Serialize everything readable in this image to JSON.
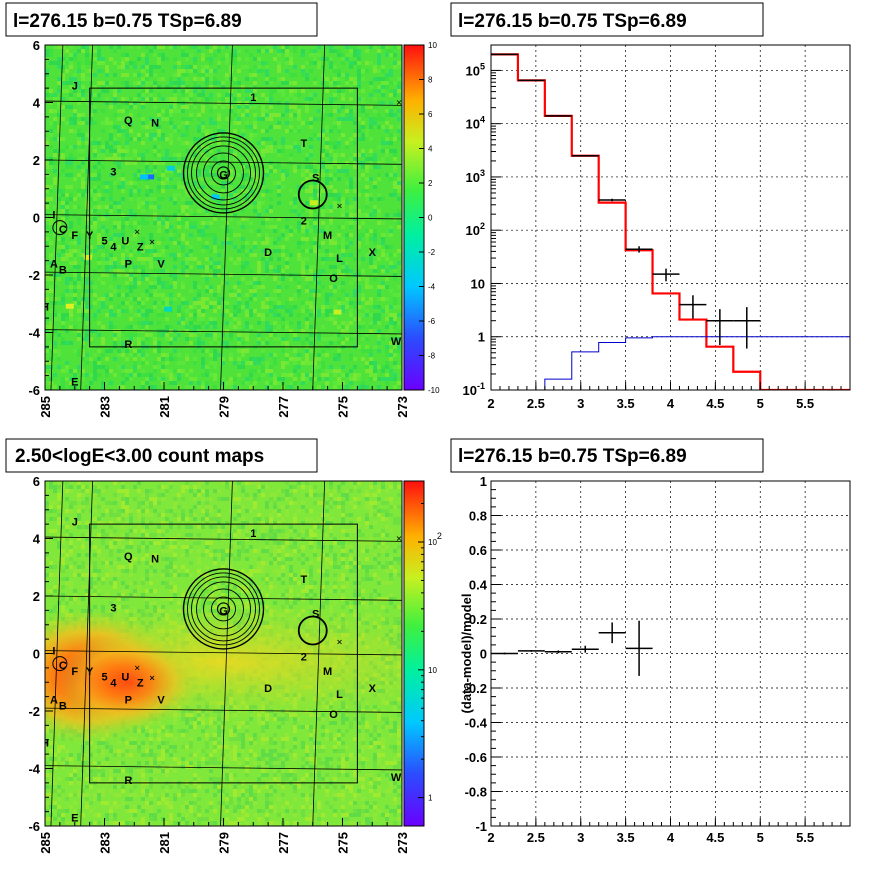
{
  "colors": {
    "model": "#ff0000",
    "background": "#0000cc",
    "data": "#000000"
  },
  "chart_data": [
    {
      "type": "heatmap",
      "title": "l=276.15 b=0.75 TSp=6.89",
      "x_ticks": [
        "285",
        "283",
        "281",
        "279",
        "277",
        "275",
        "273"
      ],
      "y_ticks": [
        "6",
        "4",
        "2",
        "0",
        "-2",
        "-4",
        "-6"
      ],
      "xlim": [
        285,
        273
      ],
      "ylim": [
        -6,
        6
      ],
      "colorbar": {
        "scale": "linear",
        "range": [
          -10,
          10
        ],
        "ticks": [
          "10",
          "8",
          "6",
          "4",
          "2",
          "0",
          "-2",
          "-4",
          "-6",
          "-8",
          "-10"
        ]
      },
      "grid": true,
      "sources": [
        "J",
        "1",
        "Q",
        "N",
        "T",
        "3",
        "G",
        "S",
        "2",
        "I",
        "C",
        "F",
        "Y",
        "5",
        "4",
        "U",
        "Z",
        "V",
        "D",
        "M",
        "L",
        "X",
        "A",
        "B",
        "P",
        "O",
        "H",
        "R",
        "W",
        "E"
      ]
    },
    {
      "type": "line",
      "title": "l=276.15 b=0.75 TSp=6.89",
      "y_scale": "log",
      "xlim": [
        2,
        6
      ],
      "ylim": [
        0.1,
        300000
      ],
      "x_ticks": [
        "2",
        "2.5",
        "3",
        "3.5",
        "4",
        "4.5",
        "5",
        "5.5"
      ],
      "y_ticks": [
        "10^5",
        "10^4",
        "10^3",
        "10^2",
        "10",
        "1",
        "10^-1"
      ],
      "grid": true,
      "series": [
        {
          "style": "step",
          "color": "#ff0000",
          "edges": [
            2.0,
            2.3,
            2.6,
            2.9,
            3.2,
            3.5,
            3.8,
            4.1,
            4.4,
            4.7,
            5.0,
            6.0
          ],
          "values": [
            200000,
            65000,
            14000,
            2500,
            330,
            42,
            6.5,
            2.1,
            0.65,
            0.22,
            0.1
          ]
        },
        {
          "style": "step",
          "color": "#0000cc",
          "edges": [
            2.0,
            2.3,
            2.6,
            2.9,
            3.2,
            3.5,
            3.8,
            4.1,
            4.4,
            4.7,
            5.0,
            6.0
          ],
          "values": [
            0.1,
            0.1,
            0.16,
            0.52,
            0.78,
            0.95,
            1.0,
            1.0,
            1.0,
            1.0,
            1.0
          ]
        },
        {
          "style": "errorbar",
          "color": "#000000",
          "points": [
            {
              "x": 2.15,
              "y": 200000,
              "xerr": 0.15,
              "ylo": 199000,
              "yhi": 201000
            },
            {
              "x": 2.45,
              "y": 65000,
              "xerr": 0.15,
              "ylo": 64500,
              "yhi": 65500
            },
            {
              "x": 2.75,
              "y": 14000,
              "xerr": 0.15,
              "ylo": 13800,
              "yhi": 14200
            },
            {
              "x": 3.05,
              "y": 2500,
              "xerr": 0.15,
              "ylo": 2450,
              "yhi": 2550
            },
            {
              "x": 3.35,
              "y": 370,
              "xerr": 0.15,
              "ylo": 350,
              "yhi": 390
            },
            {
              "x": 3.65,
              "y": 44,
              "xerr": 0.15,
              "ylo": 38,
              "yhi": 50
            },
            {
              "x": 3.95,
              "y": 15,
              "xerr": 0.15,
              "ylo": 11,
              "yhi": 19
            },
            {
              "x": 4.25,
              "y": 4,
              "xerr": 0.15,
              "ylo": 2.2,
              "yhi": 6
            },
            {
              "x": 4.55,
              "y": 2,
              "xerr": 0.15,
              "ylo": 0.7,
              "yhi": 3.3
            },
            {
              "x": 4.85,
              "y": 2,
              "xerr": 0.15,
              "ylo": 0.6,
              "yhi": 3.6
            }
          ]
        }
      ]
    },
    {
      "type": "heatmap",
      "title": "2.50<logE<3.00 count maps",
      "x_ticks": [
        "285",
        "283",
        "281",
        "279",
        "277",
        "275",
        "273"
      ],
      "y_ticks": [
        "6",
        "4",
        "2",
        "0",
        "-2",
        "-4",
        "-6"
      ],
      "xlim": [
        285,
        273
      ],
      "ylim": [
        -6,
        6
      ],
      "colorbar": {
        "scale": "log",
        "ticks": [
          "10^2",
          "10",
          "1"
        ]
      },
      "grid": true,
      "sources": [
        "J",
        "1",
        "Q",
        "N",
        "T",
        "3",
        "G",
        "S",
        "2",
        "I",
        "C",
        "F",
        "Y",
        "5",
        "4",
        "U",
        "Z",
        "V",
        "D",
        "M",
        "L",
        "X",
        "A",
        "B",
        "P",
        "O",
        "H",
        "R",
        "W",
        "E"
      ]
    },
    {
      "type": "scatter",
      "title": "l=276.15 b=0.75 TSp=6.89",
      "ylabel": "(data-model)/model",
      "xlim": [
        2,
        6
      ],
      "ylim": [
        -1,
        1
      ],
      "x_ticks": [
        "2",
        "2.5",
        "3",
        "3.5",
        "4",
        "4.5",
        "5",
        "5.5"
      ],
      "y_ticks": [
        "1",
        "0.8",
        "0.6",
        "0.4",
        "0.2",
        "0",
        "-0.2",
        "-0.4",
        "-0.6",
        "-0.8",
        "-1"
      ],
      "grid": true,
      "points": [
        {
          "x": 2.15,
          "y": 0.0,
          "xerr": 0.15,
          "yerr": 0.005
        },
        {
          "x": 2.45,
          "y": 0.015,
          "xerr": 0.15,
          "yerr": 0.005
        },
        {
          "x": 2.75,
          "y": 0.01,
          "xerr": 0.15,
          "yerr": 0.008
        },
        {
          "x": 3.05,
          "y": 0.025,
          "xerr": 0.15,
          "yerr": 0.02
        },
        {
          "x": 3.35,
          "y": 0.12,
          "xerr": 0.15,
          "yerr": 0.06
        },
        {
          "x": 3.65,
          "y": 0.03,
          "xerr": 0.15,
          "yerr": 0.16
        }
      ]
    }
  ]
}
